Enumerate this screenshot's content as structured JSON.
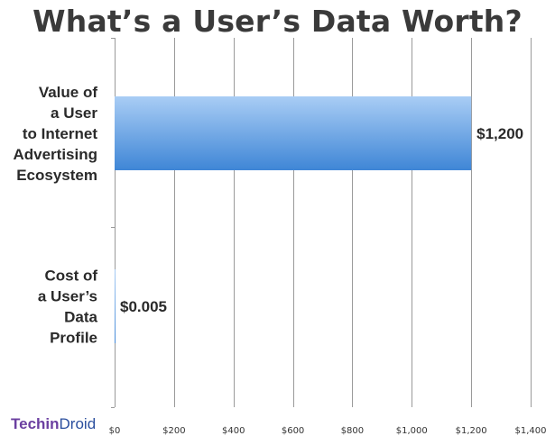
{
  "chart_data": {
    "type": "bar",
    "orientation": "horizontal",
    "title": "What’s a User’s Data Worth?",
    "categories": [
      [
        "Value of",
        "a User",
        "to Internet",
        "Advertising",
        "Ecosystem"
      ],
      [
        "Cost of",
        "a User’s",
        "Data",
        "Profile"
      ]
    ],
    "values": [
      1200,
      0.005
    ],
    "value_labels": [
      "$1,200",
      "$0.005"
    ],
    "xlim": [
      0,
      1400
    ],
    "x_ticks": [
      0,
      200,
      400,
      600,
      800,
      1000,
      1200,
      1400
    ],
    "x_tick_labels": [
      "$0",
      "$200",
      "$400",
      "$600",
      "$800",
      "$1,000",
      "$1,200",
      "$1,400"
    ],
    "grid": true,
    "xlabel": "",
    "ylabel": "",
    "colors": {
      "bar_top": "#a9cdf5",
      "bar_bottom": "#3f86d6",
      "grid": "#9a9a9a"
    }
  },
  "logo": {
    "part1": "Techin",
    "part2": "Droid"
  }
}
